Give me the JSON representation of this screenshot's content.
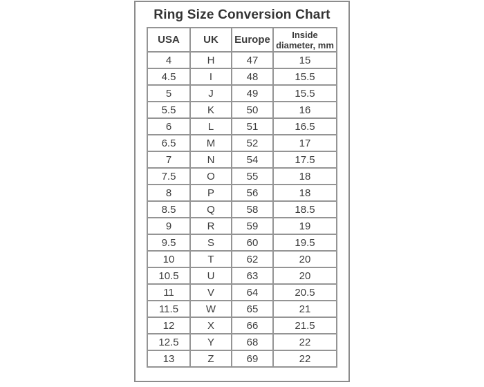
{
  "page": {
    "background_color": "#ffffff",
    "card_border_color": "#8c8c8c",
    "grid_border_color": "#949494",
    "text_color": "#3c3c3c"
  },
  "title": "Ring Size Conversion Chart",
  "chart_data": {
    "type": "table",
    "title": "Ring Size Conversion Chart",
    "columns": [
      "USA",
      "UK",
      "Europe",
      "Inside\ndiameter, mm"
    ],
    "rows": [
      [
        "4",
        "H",
        "47",
        "15"
      ],
      [
        "4.5",
        "I",
        "48",
        "15.5"
      ],
      [
        "5",
        "J",
        "49",
        "15.5"
      ],
      [
        "5.5",
        "K",
        "50",
        "16"
      ],
      [
        "6",
        "L",
        "51",
        "16.5"
      ],
      [
        "6.5",
        "M",
        "52",
        "17"
      ],
      [
        "7",
        "N",
        "54",
        "17.5"
      ],
      [
        "7.5",
        "O",
        "55",
        "18"
      ],
      [
        "8",
        "P",
        "56",
        "18"
      ],
      [
        "8.5",
        "Q",
        "58",
        "18.5"
      ],
      [
        "9",
        "R",
        "59",
        "19"
      ],
      [
        "9.5",
        "S",
        "60",
        "19.5"
      ],
      [
        "10",
        "T",
        "62",
        "20"
      ],
      [
        "10.5",
        "U",
        "63",
        "20"
      ],
      [
        "11",
        "V",
        "64",
        "20.5"
      ],
      [
        "11.5",
        "W",
        "65",
        "21"
      ],
      [
        "12",
        "X",
        "66",
        "21.5"
      ],
      [
        "12.5",
        "Y",
        "68",
        "22"
      ],
      [
        "13",
        "Z",
        "69",
        "22"
      ]
    ]
  }
}
